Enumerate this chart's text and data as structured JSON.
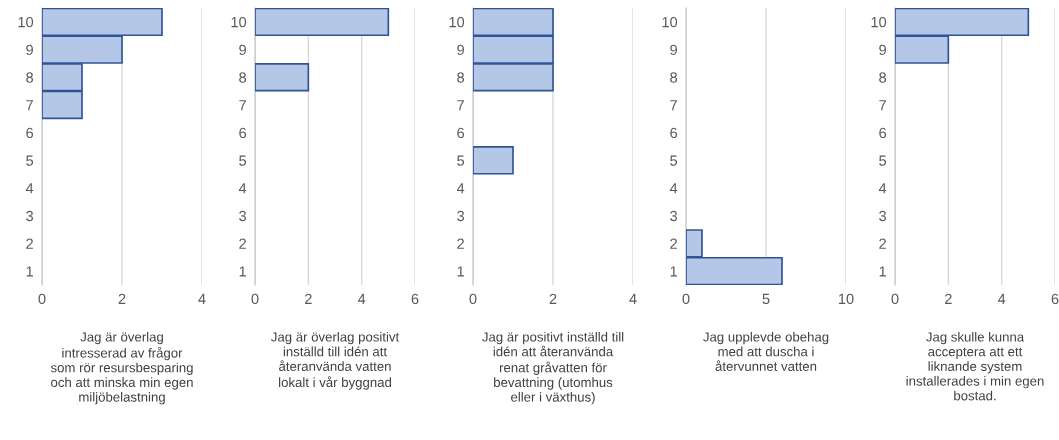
{
  "chart_data": [
    {
      "type": "bar",
      "orientation": "horizontal",
      "xlabel": "Jag är överlag\nintresserad av frågor\nsom rör resursbesparing\noch att minska min egen\nmiljöbelastning",
      "categories": [
        "10",
        "9",
        "8",
        "7",
        "6",
        "5",
        "4",
        "3",
        "2",
        "1"
      ],
      "values": [
        3,
        2,
        1,
        1,
        0,
        0,
        0,
        0,
        0,
        0
      ],
      "color": "#b4c7e7",
      "xlim": [
        0,
        4
      ],
      "xticks": [
        0,
        2,
        4
      ],
      "grid": "x",
      "legend": false
    },
    {
      "type": "bar",
      "orientation": "horizontal",
      "xlabel": "Jag är överlag positivt\ninställd till idén att\nåteranvända vatten\nlokalt i vår byggnad",
      "categories": [
        "10",
        "9",
        "8",
        "7",
        "6",
        "5",
        "4",
        "3",
        "2",
        "1"
      ],
      "values": [
        5,
        0,
        2,
        0,
        0,
        0,
        0,
        0,
        0,
        0
      ],
      "color": "#b4c7e7",
      "xlim": [
        0,
        6
      ],
      "xticks": [
        0,
        2,
        4,
        6
      ],
      "grid": "x",
      "legend": false
    },
    {
      "type": "bar",
      "orientation": "horizontal",
      "xlabel": "Jag är positivt inställd till\nidén att återanvända\nrenat gråvatten för\nbevattning (utomhus\neller i växthus)",
      "categories": [
        "10",
        "9",
        "8",
        "7",
        "6",
        "5",
        "4",
        "3",
        "2",
        "1"
      ],
      "values": [
        2,
        2,
        2,
        0,
        0,
        1,
        0,
        0,
        0,
        0
      ],
      "color": "#b4c7e7",
      "xlim": [
        0,
        4
      ],
      "xticks": [
        0,
        2,
        4
      ],
      "grid": "x",
      "legend": false
    },
    {
      "type": "bar",
      "orientation": "horizontal",
      "xlabel": "Jag upplevde obehag\nmed att duscha i\nåtervunnet vatten",
      "categories": [
        "10",
        "9",
        "8",
        "7",
        "6",
        "5",
        "4",
        "3",
        "2",
        "1"
      ],
      "values": [
        0,
        0,
        0,
        0,
        0,
        0,
        0,
        0,
        1,
        6
      ],
      "color": "#b4c7e7",
      "xlim": [
        0,
        10
      ],
      "xticks": [
        0,
        5,
        10
      ],
      "grid": "x",
      "legend": false
    },
    {
      "type": "bar",
      "orientation": "horizontal",
      "xlabel": "Jag skulle kunna\nacceptera att ett\nliknande system\ninstallerades i min egen\nbostad.",
      "categories": [
        "10",
        "9",
        "8",
        "7",
        "6",
        "5",
        "4",
        "3",
        "2",
        "1"
      ],
      "values": [
        5,
        2,
        0,
        0,
        0,
        0,
        0,
        0,
        0,
        0
      ],
      "color": "#b4c7e7",
      "xlim": [
        0,
        6
      ],
      "xticks": [
        0,
        2,
        4,
        6
      ],
      "grid": "x",
      "legend": false
    }
  ]
}
